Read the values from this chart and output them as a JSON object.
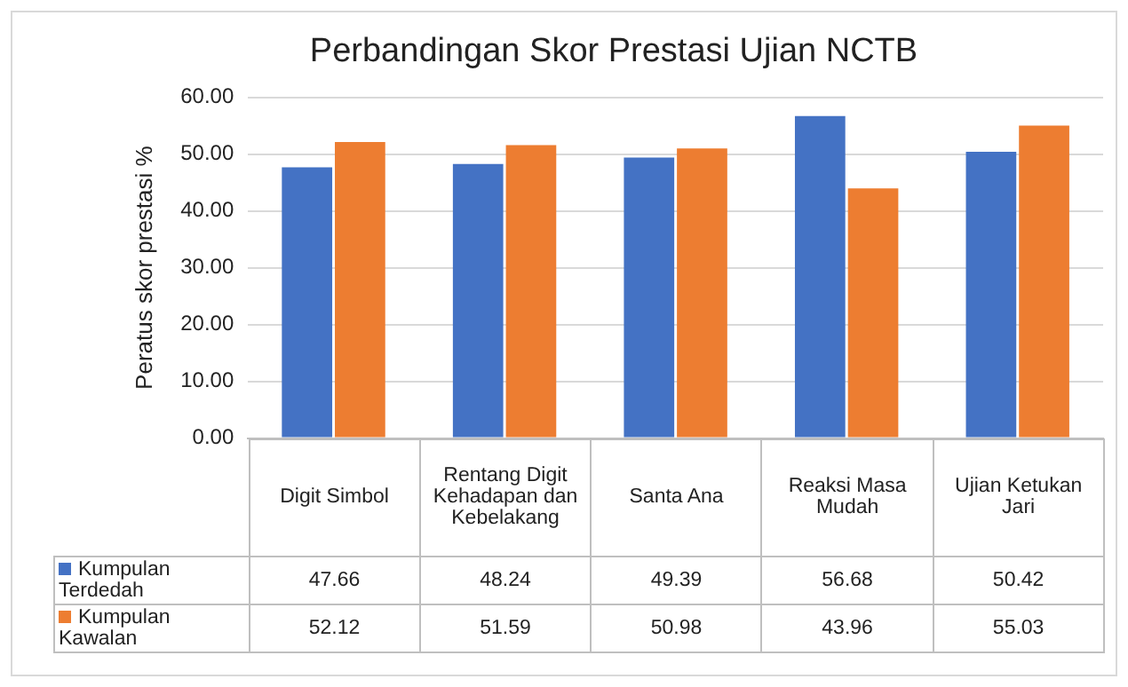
{
  "chart_data": {
    "type": "bar",
    "title": "Perbandingan Skor Prestasi Ujian NCTB",
    "ylabel": "Peratus skor prestasi %",
    "categories": [
      "Digit Simbol",
      "Rentang Digit Kehadapan dan Kebelakang",
      "Santa Ana",
      "Reaksi Masa Mudah",
      "Ujian Ketukan Jari"
    ],
    "series": [
      {
        "name": "Kumpulan Terdedah",
        "color": "#4472c4",
        "values": [
          47.66,
          48.24,
          49.39,
          56.68,
          50.42
        ]
      },
      {
        "name": "Kumpulan Kawalan",
        "color": "#ed7d31",
        "values": [
          52.12,
          51.59,
          50.98,
          43.96,
          55.03
        ]
      }
    ],
    "ylim": [
      0,
      60
    ],
    "yticks": [
      {
        "value": 0,
        "label": "0.00"
      },
      {
        "value": 10,
        "label": "10.00"
      },
      {
        "value": 20,
        "label": "20.00"
      },
      {
        "value": 30,
        "label": "30.00"
      },
      {
        "value": 40,
        "label": "40.00"
      },
      {
        "value": 50,
        "label": "50.00"
      },
      {
        "value": 60,
        "label": "60.00"
      }
    ],
    "grid": "y",
    "legend": "bottom",
    "data_labels": true
  }
}
